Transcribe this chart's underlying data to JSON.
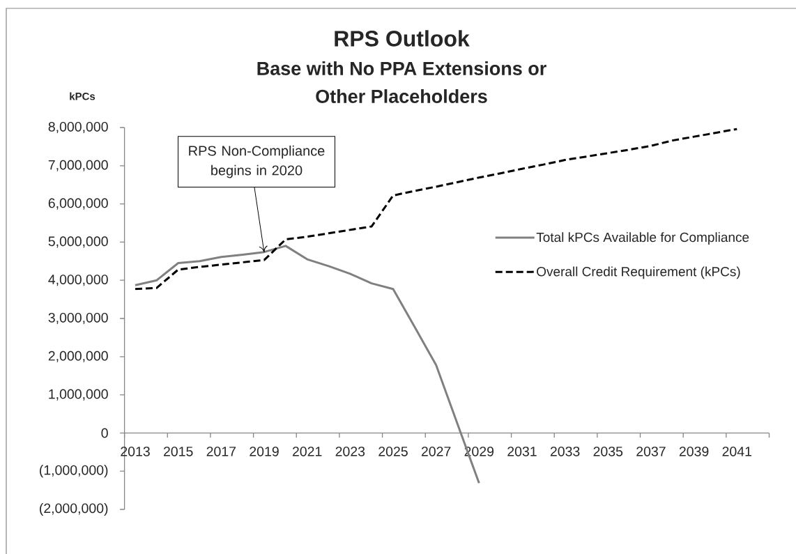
{
  "chart_data": {
    "type": "line",
    "title": "RPS Outlook",
    "subtitle": "Base with No PPA Extensions or Other Placeholders",
    "ylabel": "kPCs",
    "categories": [
      "2013",
      null,
      "2015",
      null,
      "2017",
      null,
      "2019",
      null,
      "2021",
      null,
      "2023",
      null,
      "2025",
      null,
      "2027",
      null,
      "2029",
      null,
      "2031",
      null,
      "2033",
      null,
      "2035",
      null,
      "2037",
      null,
      "2039",
      null,
      "2041",
      null
    ],
    "series": [
      {
        "name": "Total kPCs Available for Compliance",
        "color": "#808080",
        "line_style": "solid",
        "values": [
          3870000,
          4000000,
          4450000,
          4500000,
          4610000,
          4670000,
          4740000,
          4900000,
          4550000,
          4370000,
          4170000,
          3920000,
          3770000,
          2780000,
          1780000,
          230000,
          -1310000,
          null,
          null,
          null,
          null,
          null,
          null,
          null,
          null,
          null,
          null,
          null,
          null,
          null
        ]
      },
      {
        "name": "Overall Credit Requirement (kPCs)",
        "color": "#000000",
        "line_style": "dashed",
        "values": [
          3770000,
          3800000,
          4280000,
          4350000,
          4410000,
          4470000,
          4530000,
          5070000,
          5140000,
          5230000,
          5320000,
          5410000,
          6220000,
          6340000,
          6450000,
          6570000,
          6690000,
          6800000,
          6920000,
          7030000,
          7150000,
          7240000,
          7330000,
          7420000,
          7520000,
          7660000,
          7760000,
          7860000,
          7960000,
          null
        ]
      }
    ],
    "ylim": [
      -2000000,
      8000000
    ],
    "yticks": [
      {
        "value": -2000000,
        "label": "(2,000,000)"
      },
      {
        "value": -1000000,
        "label": "(1,000,000)"
      },
      0,
      {
        "value": 1000000,
        "label": "1,000,000"
      },
      {
        "value": 2000000,
        "label": "2,000,000"
      },
      {
        "value": 3000000,
        "label": "3,000,000"
      },
      {
        "value": 4000000,
        "label": "4,000,000"
      },
      {
        "value": 5000000,
        "label": "5,000,000"
      },
      {
        "value": 6000000,
        "label": "6,000,000"
      },
      {
        "value": 7000000,
        "label": "7,000,000"
      },
      {
        "value": 8000000,
        "label": "8,000,000"
      }
    ],
    "grid": false,
    "legend": "right",
    "annotations": [
      {
        "text": "RPS Non-Compliance begins in 2020",
        "x": "2019",
        "y": 4730000
      }
    ]
  }
}
